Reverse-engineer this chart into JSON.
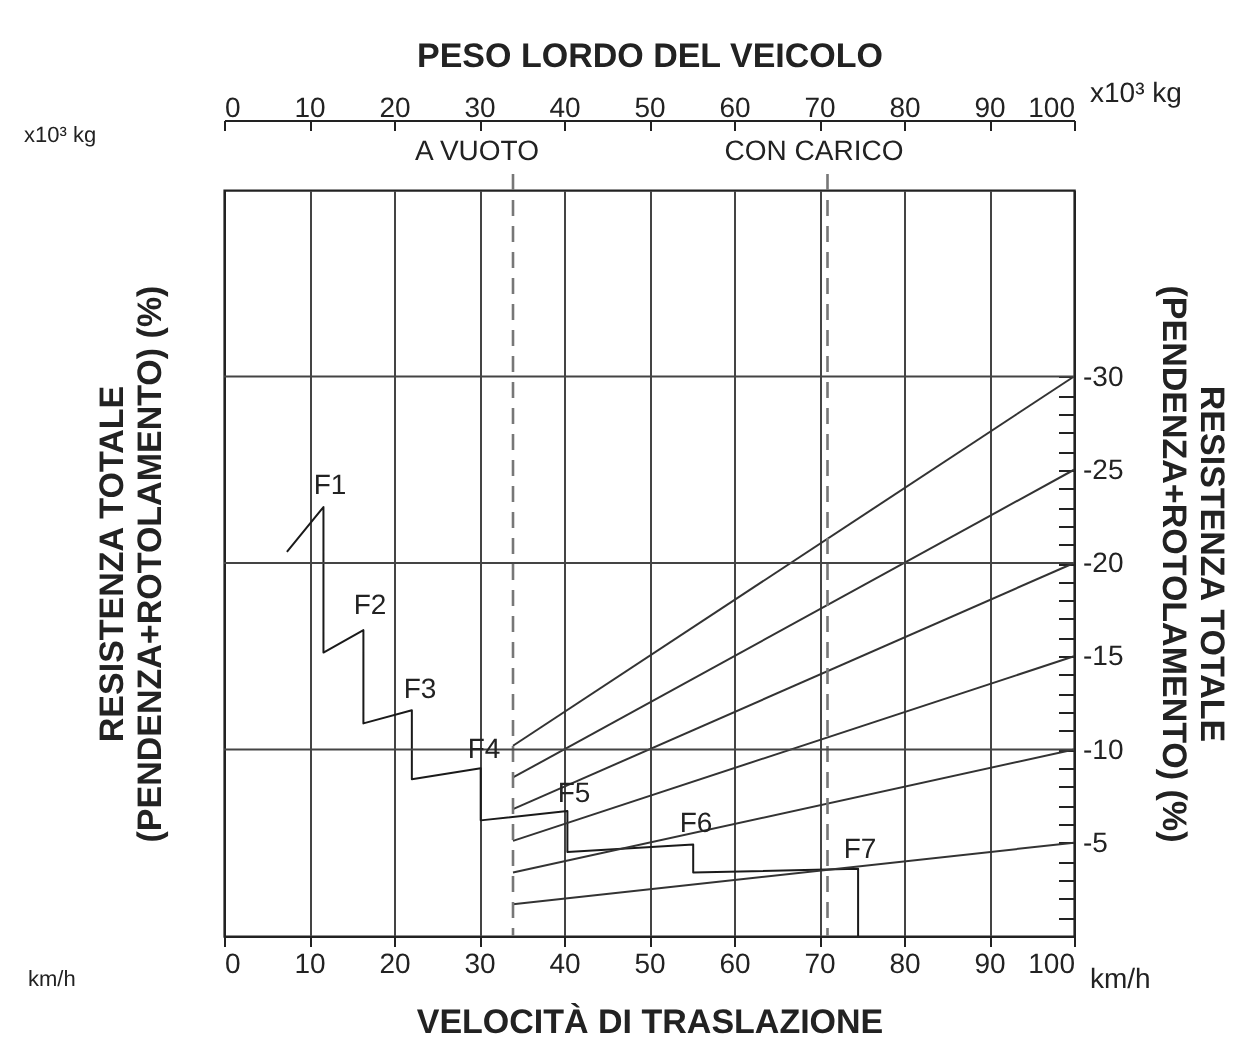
{
  "chart_data": {
    "type": "line",
    "xlabel": "VELOCITÀ DI TRASLAZIONE",
    "x2label": "PESO LORDO DEL VEICOLO",
    "ylabel": "RESISTENZA TOTALE (PENDENZA+ROTOLAMENTO) (%)",
    "y2label": "RESISTENZA TOTALE (PENDENZA+ROTOLAMENTO) (%)",
    "xlim": [
      0,
      100
    ],
    "xticks": [
      0,
      10,
      20,
      30,
      40,
      50,
      60,
      70,
      80,
      90,
      100
    ],
    "x2lim": [
      0,
      100
    ],
    "x2ticks": [
      0,
      10,
      20,
      30,
      40,
      50,
      60,
      70,
      80,
      90,
      100
    ],
    "y2lim": [
      0,
      -40
    ],
    "y2ticks": [
      {
        "value": -1,
        "label": null
      },
      {
        "value": -2,
        "label": null
      },
      {
        "value": -3,
        "label": null
      },
      {
        "value": -4,
        "label": null
      },
      -5,
      {
        "value": -6,
        "label": null
      },
      {
        "value": -7,
        "label": null
      },
      {
        "value": -8,
        "label": null
      },
      {
        "value": -9,
        "label": null
      },
      -10,
      {
        "value": -11,
        "label": null
      },
      {
        "value": -12,
        "label": null
      },
      {
        "value": -13,
        "label": null
      },
      {
        "value": -14,
        "label": null
      },
      -15,
      {
        "value": -16,
        "label": null
      },
      {
        "value": -17,
        "label": null
      },
      {
        "value": -18,
        "label": null
      },
      {
        "value": -19,
        "label": null
      },
      -20,
      {
        "value": -21,
        "label": null
      },
      {
        "value": -22,
        "label": null
      },
      {
        "value": -23,
        "label": null
      },
      {
        "value": -24,
        "label": null
      },
      -25,
      {
        "value": -26,
        "label": null
      },
      {
        "value": -27,
        "label": null
      },
      {
        "value": -28,
        "label": null
      },
      {
        "value": -29,
        "label": null
      },
      -30
    ],
    "grid": "x",
    "series": [
      {
        "color": "#1a1a1a",
        "axis": "y2",
        "x": [
          7.4,
          11.7,
          11.7,
          16.4,
          16.4,
          22.1,
          22.1,
          30.2,
          30.2,
          40.4,
          40.4,
          55.2,
          55.2,
          74.6,
          74.6
        ],
        "values": [
          -20.6,
          -23.0,
          -15.2,
          -16.4,
          -11.4,
          -12.1,
          -8.4,
          -9.0,
          -6.2,
          -6.7,
          -4.5,
          -4.9,
          -3.4,
          -3.6,
          0
        ]
      },
      {
        "color": "#333333",
        "axis": "y2",
        "x": [
          34,
          100
        ],
        "values": [
          -10.2,
          -30
        ]
      },
      {
        "color": "#333333",
        "axis": "y2",
        "x": [
          34,
          100
        ],
        "values": [
          -8.5,
          -25
        ]
      },
      {
        "color": "#333333",
        "axis": "y2",
        "x": [
          34,
          100
        ],
        "values": [
          -6.8,
          -20
        ]
      },
      {
        "color": "#333333",
        "axis": "y2",
        "x": [
          34,
          100
        ],
        "values": [
          -5.1,
          -15
        ]
      },
      {
        "color": "#333333",
        "axis": "y2",
        "x": [
          34,
          100
        ],
        "values": [
          -3.4,
          -10
        ]
      },
      {
        "color": "#333333",
        "axis": "y2",
        "x": [
          34,
          100
        ],
        "values": [
          -1.7,
          -5
        ]
      }
    ],
    "ref_lines": [
      {
        "axis": "x2",
        "value": 34,
        "label": "A VUOTO",
        "color": "#777777",
        "line_style": "dashed"
      },
      {
        "axis": "x2",
        "value": 71,
        "label": "CON CARICO",
        "color": "#777777",
        "line_style": "dashed"
      },
      {
        "axis": "y2",
        "value": -10,
        "color": "#444444"
      },
      {
        "axis": "y2",
        "value": -20,
        "color": "#444444"
      },
      {
        "axis": "y2",
        "value": -30,
        "color": "#444444"
      }
    ],
    "annotations": [
      "x10³ kg",
      "x10³ kg",
      "km/h",
      "km/h",
      "F1",
      "F2",
      "F3",
      "F4",
      "F5",
      "F6",
      "F7"
    ]
  }
}
